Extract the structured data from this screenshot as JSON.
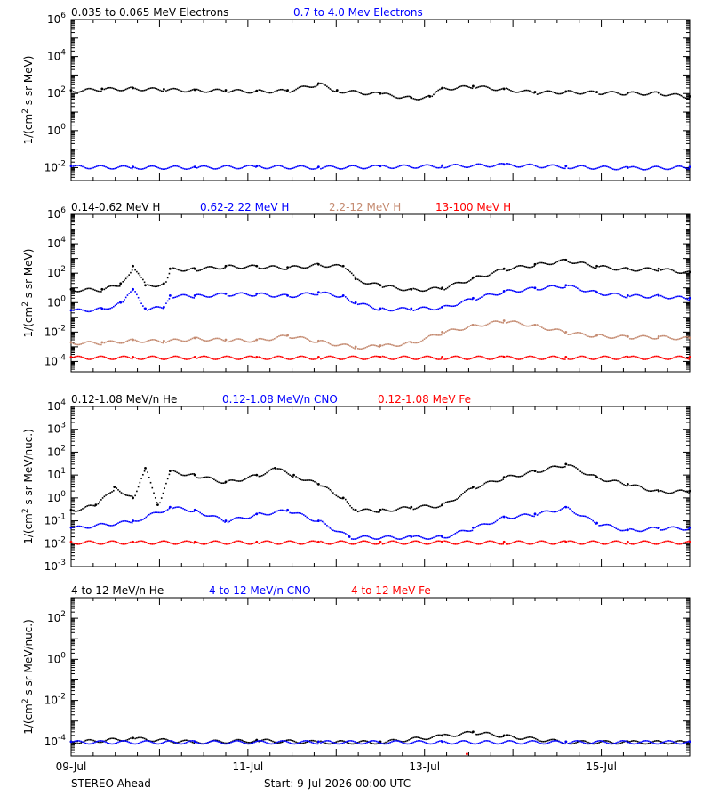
{
  "chart_data": [
    {
      "type": "scatter",
      "panel": "electrons",
      "ylabel": "1/(cm$^2$ s sr MeV)",
      "y_scale": "log",
      "ylim": [
        0.002,
        1000000
      ],
      "y_ticks": [
        [
          "10",
          "-2"
        ],
        [
          "10",
          "0"
        ],
        [
          "10",
          "2"
        ],
        [
          "10",
          "4"
        ],
        [
          "10",
          "6"
        ]
      ],
      "series": [
        {
          "name": "0.035 to 0.065 MeV Electrons",
          "color": "#000000",
          "points": [
            [
              0,
              150
            ],
            [
              0.5,
              180
            ],
            [
              1,
              200
            ],
            [
              1.5,
              170
            ],
            [
              2,
              160
            ],
            [
              2.5,
              150
            ],
            [
              3,
              140
            ],
            [
              3.5,
              150
            ],
            [
              4,
              350
            ],
            [
              4.3,
              150
            ],
            [
              5,
              100
            ],
            [
              5.5,
              60
            ],
            [
              5.8,
              70
            ],
            [
              6,
              200
            ],
            [
              6.5,
              250
            ],
            [
              7,
              180
            ],
            [
              7.5,
              120
            ],
            [
              8,
              130
            ],
            [
              8.5,
              120
            ],
            [
              9,
              110
            ],
            [
              9.5,
              110
            ],
            [
              10,
              70
            ]
          ]
        },
        {
          "name": "0.7 to 4.0 Mev Electrons",
          "color": "#0000ff",
          "points": [
            [
              0,
              0.012
            ],
            [
              1,
              0.011
            ],
            [
              2,
              0.011
            ],
            [
              3,
              0.012
            ],
            [
              4,
              0.011
            ],
            [
              5,
              0.012
            ],
            [
              6,
              0.013
            ],
            [
              7,
              0.015
            ],
            [
              8,
              0.012
            ],
            [
              9,
              0.01
            ],
            [
              10,
              0.011
            ]
          ]
        }
      ]
    },
    {
      "type": "scatter",
      "panel": "protons",
      "ylabel": "1/(cm$^2$ s sr MeV)",
      "y_scale": "log",
      "ylim": [
        2e-05,
        1000000
      ],
      "y_ticks": [
        [
          "10",
          "-4"
        ],
        [
          "10",
          "-2"
        ],
        [
          "10",
          "0"
        ],
        [
          "10",
          "2"
        ],
        [
          "10",
          "4"
        ],
        [
          "10",
          "6"
        ]
      ],
      "series": [
        {
          "name": "0.14-0.62 MeV H",
          "color": "#000000",
          "points": [
            [
              0,
              8
            ],
            [
              0.5,
              8
            ],
            [
              0.8,
              20
            ],
            [
              1,
              300
            ],
            [
              1.2,
              15
            ],
            [
              1.5,
              20
            ],
            [
              1.6,
              200
            ],
            [
              2,
              200
            ],
            [
              2.5,
              300
            ],
            [
              3,
              300
            ],
            [
              3.5,
              250
            ],
            [
              4,
              400
            ],
            [
              4.4,
              300
            ],
            [
              4.6,
              40
            ],
            [
              5,
              15
            ],
            [
              5.5,
              8
            ],
            [
              6,
              10
            ],
            [
              6.5,
              50
            ],
            [
              7,
              200
            ],
            [
              7.5,
              400
            ],
            [
              8,
              800
            ],
            [
              8.5,
              300
            ],
            [
              9,
              200
            ],
            [
              9.5,
              200
            ],
            [
              10,
              120
            ]
          ]
        },
        {
          "name": "0.62-2.22 MeV H",
          "color": "#0000ff",
          "points": [
            [
              0,
              0.3
            ],
            [
              0.5,
              0.4
            ],
            [
              0.8,
              1
            ],
            [
              1,
              8
            ],
            [
              1.2,
              0.4
            ],
            [
              1.5,
              0.5
            ],
            [
              1.6,
              3
            ],
            [
              2,
              3
            ],
            [
              2.5,
              4
            ],
            [
              3,
              4
            ],
            [
              3.5,
              3
            ],
            [
              4,
              5
            ],
            [
              4.4,
              3
            ],
            [
              4.6,
              1
            ],
            [
              5,
              0.4
            ],
            [
              5.5,
              0.4
            ],
            [
              6,
              0.5
            ],
            [
              6.5,
              2
            ],
            [
              7,
              6
            ],
            [
              7.5,
              10
            ],
            [
              8,
              15
            ],
            [
              8.5,
              5
            ],
            [
              9,
              3
            ],
            [
              9.5,
              3
            ],
            [
              10,
              2
            ]
          ]
        },
        {
          "name": "2.2-12 MeV H",
          "color": "#c48a70",
          "points": [
            [
              0,
              0.002
            ],
            [
              0.5,
              0.002
            ],
            [
              1,
              0.003
            ],
            [
              1.5,
              0.0025
            ],
            [
              2,
              0.004
            ],
            [
              2.5,
              0.003
            ],
            [
              3,
              0.003
            ],
            [
              3.5,
              0.006
            ],
            [
              4,
              0.0025
            ],
            [
              4.6,
              0.001
            ],
            [
              5,
              0.0012
            ],
            [
              5.5,
              0.002
            ],
            [
              6,
              0.01
            ],
            [
              6.5,
              0.03
            ],
            [
              7,
              0.06
            ],
            [
              7.5,
              0.03
            ],
            [
              8,
              0.01
            ],
            [
              8.5,
              0.006
            ],
            [
              9,
              0.005
            ],
            [
              9.5,
              0.005
            ],
            [
              10,
              0.004
            ]
          ]
        },
        {
          "name": "13-100 MeV H",
          "color": "#ff0000",
          "points": [
            [
              0,
              0.0002
            ],
            [
              1,
              0.0002
            ],
            [
              2,
              0.0002
            ],
            [
              3,
              0.0002
            ],
            [
              4,
              0.0002
            ],
            [
              5,
              0.0002
            ],
            [
              6,
              0.0002
            ],
            [
              7,
              0.0002
            ],
            [
              8,
              0.0002
            ],
            [
              9,
              0.0002
            ],
            [
              10,
              0.0002
            ]
          ]
        }
      ]
    },
    {
      "type": "scatter",
      "panel": "heavy-low",
      "ylabel": "1/(cm$^2$ s sr MeV/nuc.)",
      "y_scale": "log",
      "ylim": [
        0.001,
        10000
      ],
      "y_ticks": [
        [
          "10",
          "-3"
        ],
        [
          "10",
          "-2"
        ],
        [
          "10",
          "-1"
        ],
        [
          "10",
          "0"
        ],
        [
          "10",
          "1"
        ],
        [
          "10",
          "2"
        ],
        [
          "10",
          "3"
        ],
        [
          "10",
          "4"
        ]
      ],
      "series": [
        {
          "name": "0.12-1.08 MeV/n He",
          "color": "#000000",
          "points": [
            [
              0,
              0.3
            ],
            [
              0.4,
              0.5
            ],
            [
              0.7,
              3
            ],
            [
              1,
              1
            ],
            [
              1.2,
              20
            ],
            [
              1.4,
              0.5
            ],
            [
              1.6,
              15
            ],
            [
              2,
              10
            ],
            [
              2.5,
              5
            ],
            [
              3,
              10
            ],
            [
              3.3,
              20
            ],
            [
              3.6,
              10
            ],
            [
              4,
              4
            ],
            [
              4.4,
              1
            ],
            [
              4.6,
              0.3
            ],
            [
              5,
              0.3
            ],
            [
              5.5,
              0.4
            ],
            [
              6,
              0.5
            ],
            [
              6.5,
              3
            ],
            [
              7,
              8
            ],
            [
              7.5,
              15
            ],
            [
              8,
              30
            ],
            [
              8.5,
              8
            ],
            [
              9,
              4
            ],
            [
              9.5,
              2
            ],
            [
              10,
              2
            ]
          ]
        },
        {
          "name": "0.12-1.08 MeV/n CNO",
          "color": "#0000ff",
          "points": [
            [
              0,
              0.05
            ],
            [
              1,
              0.1
            ],
            [
              1.6,
              0.4
            ],
            [
              2,
              0.3
            ],
            [
              2.5,
              0.1
            ],
            [
              3,
              0.2
            ],
            [
              3.5,
              0.3
            ],
            [
              4,
              0.1
            ],
            [
              4.5,
              0.02
            ],
            [
              5.5,
              0.02
            ],
            [
              6,
              0.02
            ],
            [
              6.5,
              0.05
            ],
            [
              7,
              0.15
            ],
            [
              7.5,
              0.2
            ],
            [
              8,
              0.4
            ],
            [
              8.5,
              0.08
            ],
            [
              9,
              0.04
            ],
            [
              9.5,
              0.05
            ],
            [
              10,
              0.05
            ]
          ]
        },
        {
          "name": "0.12-1.08 MeV Fe",
          "color": "#ff0000",
          "points": [
            [
              0,
              0.012
            ],
            [
              1,
              0.012
            ],
            [
              2,
              0.012
            ],
            [
              3,
              0.012
            ],
            [
              4,
              0.012
            ],
            [
              5,
              0.012
            ],
            [
              6,
              0.012
            ],
            [
              7,
              0.012
            ],
            [
              8,
              0.012
            ],
            [
              9,
              0.012
            ],
            [
              10,
              0.012
            ]
          ]
        }
      ]
    },
    {
      "type": "scatter",
      "panel": "heavy-high",
      "ylabel": "1/(cm$^2$ s sr MeV/nuc.)",
      "y_scale": "log",
      "ylim": [
        2e-05,
        1000
      ],
      "y_ticks": [
        [
          "10",
          "-4"
        ],
        [
          "10",
          "-2"
        ],
        [
          "10",
          "0"
        ],
        [
          "10",
          "2"
        ]
      ],
      "series": [
        {
          "name": "4 to 12 MeV/n He",
          "color": "#000000",
          "points": [
            [
              0,
              0.0001
            ],
            [
              1,
              0.00015
            ],
            [
              2,
              0.0001
            ],
            [
              3,
              0.00012
            ],
            [
              4,
              0.0001
            ],
            [
              5,
              0.0001
            ],
            [
              6,
              0.0002
            ],
            [
              6.5,
              0.0003
            ],
            [
              7,
              0.0002
            ],
            [
              8,
              0.0001
            ],
            [
              9,
              0.0001
            ],
            [
              10,
              0.0001
            ]
          ]
        },
        {
          "name": "4 to 12 MeV/n CNO",
          "color": "#0000ff",
          "points": [
            [
              0,
              0.0001
            ],
            [
              2,
              0.0001
            ],
            [
              4,
              0.0001
            ],
            [
              6,
              0.0001
            ],
            [
              8,
              0.0001
            ],
            [
              10,
              0.0001
            ]
          ]
        },
        {
          "name": "4 to 12 MeV Fe",
          "color": "#ff0000",
          "points": [
            [
              6.4,
              2.5e-05
            ]
          ]
        }
      ]
    }
  ],
  "x_axis": {
    "range_days": [
      0,
      7
    ],
    "tick_labels": [
      {
        "day": 0,
        "label": "09-Jul"
      },
      {
        "day": 2,
        "label": "11-Jul"
      },
      {
        "day": 4,
        "label": "13-Jul"
      },
      {
        "day": 6,
        "label": "15-Jul"
      }
    ]
  },
  "footer": {
    "left": "STEREO Ahead",
    "center": "Start:  9-Jul-2026 00:00 UTC"
  }
}
